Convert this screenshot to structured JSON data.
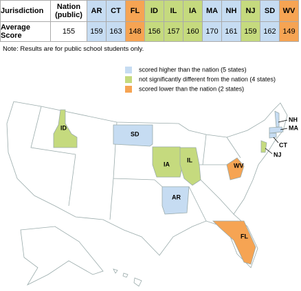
{
  "legend": [
    {
      "label": "scored higher than the nation (5 states)",
      "color": "#c6dcf2"
    },
    {
      "label": "not significantly different from the nation (4 states)",
      "color": "#c5da7e"
    },
    {
      "label": "scored lower than the nation (2 states)",
      "color": "#f6a453"
    }
  ],
  "table": {
    "corner": "Jurisdiction",
    "row_label": "Average Score",
    "nation": {
      "label": "Nation (public)",
      "score": 155
    },
    "columns": [
      {
        "code": "AR",
        "score": 159,
        "group": 0
      },
      {
        "code": "CT",
        "score": 163,
        "group": 0
      },
      {
        "code": "FL",
        "score": 148,
        "group": 2
      },
      {
        "code": "ID",
        "score": 156,
        "group": 1
      },
      {
        "code": "IL",
        "score": 157,
        "group": 1
      },
      {
        "code": "IA",
        "score": 160,
        "group": 1
      },
      {
        "code": "MA",
        "score": 170,
        "group": 0
      },
      {
        "code": "NH",
        "score": 161,
        "group": 0
      },
      {
        "code": "NJ",
        "score": 159,
        "group": 1
      },
      {
        "code": "SD",
        "score": 162,
        "group": 0
      },
      {
        "code": "WV",
        "score": 149,
        "group": 2
      }
    ]
  },
  "note": "Note: Results are for public school students only.",
  "map": {
    "states": [
      {
        "label": "ID",
        "group": 1
      },
      {
        "label": "SD",
        "group": 0
      },
      {
        "label": "IA",
        "group": 1
      },
      {
        "label": "IL",
        "group": 1
      },
      {
        "label": "AR",
        "group": 0
      },
      {
        "label": "WV",
        "group": 2
      },
      {
        "label": "FL",
        "group": 2
      },
      {
        "label": "NJ",
        "group": 1
      },
      {
        "label": "CT",
        "group": 0
      },
      {
        "label": "MA",
        "group": 0
      },
      {
        "label": "NH",
        "group": 0
      }
    ]
  }
}
